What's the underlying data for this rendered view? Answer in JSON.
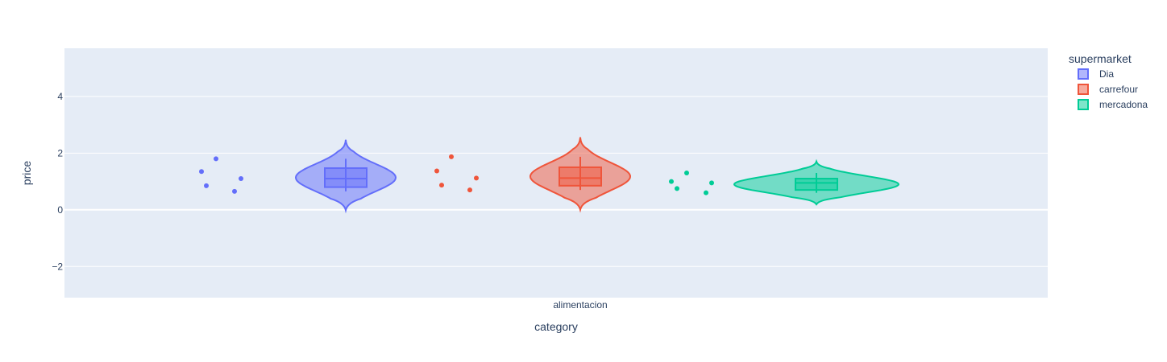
{
  "chart_data": {
    "type": "violin",
    "xlabel": "category",
    "ylabel": "price",
    "categories": [
      "alimentacion"
    ],
    "ylim": [
      -3.1,
      5.7
    ],
    "y_ticks": [
      -2,
      0,
      2,
      4
    ],
    "y_tick_labels": [
      "−2",
      "0",
      "2",
      "4"
    ],
    "grid": true,
    "plot_bgcolor": "#e5ecf6",
    "legend": {
      "title": "supermarket",
      "placement": "right"
    },
    "series": [
      {
        "name": "Dia",
        "color": "#636efa",
        "points": [
          1.8,
          1.35,
          0.85,
          1.1,
          0.65
        ],
        "box": {
          "q1": 0.8,
          "median": 1.1,
          "q3": 1.47,
          "whisker_low": 0.65,
          "whisker_high": 1.8
        },
        "violin_range": [
          -0.02,
          2.47
        ]
      },
      {
        "name": "carrefour",
        "color": "#ef553b",
        "points": [
          1.87,
          1.37,
          0.87,
          1.12,
          0.7
        ],
        "box": {
          "q1": 0.85,
          "median": 1.12,
          "q3": 1.5,
          "whisker_low": 0.7,
          "whisker_high": 1.87
        },
        "violin_range": [
          0.0,
          2.56
        ]
      },
      {
        "name": "mercadona",
        "color": "#00cc96",
        "points": [
          1.3,
          1.0,
          0.75,
          0.95,
          0.6
        ],
        "box": {
          "q1": 0.7,
          "median": 0.95,
          "q3": 1.1,
          "whisker_low": 0.6,
          "whisker_high": 1.3
        },
        "violin_range": [
          0.19,
          1.71
        ]
      }
    ]
  }
}
